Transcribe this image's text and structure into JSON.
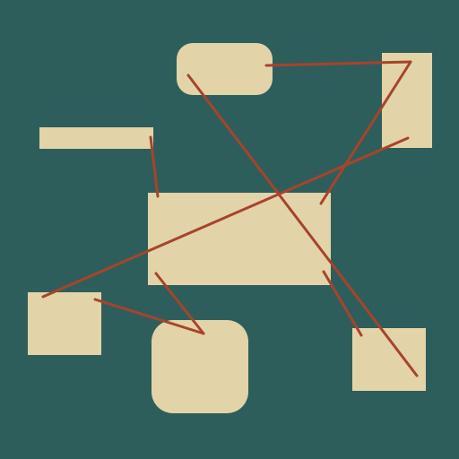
{
  "colors": {
    "background": "#2e5e5c",
    "node_fill": "#e2d4a8",
    "connector": "#a8432b"
  },
  "nodes": [
    {
      "id": "rounded-top",
      "shape": "rounded-rectangle"
    },
    {
      "id": "right-tall",
      "shape": "rectangle"
    },
    {
      "id": "thin-bar",
      "shape": "rectangle"
    },
    {
      "id": "center-large",
      "shape": "rectangle"
    },
    {
      "id": "small-left",
      "shape": "rectangle"
    },
    {
      "id": "rounded-bottom",
      "shape": "rounded-rectangle"
    },
    {
      "id": "bottom-right",
      "shape": "rectangle"
    }
  ],
  "edges": [
    {
      "from": "rounded-top",
      "to": "right-tall"
    },
    {
      "from": "right-tall",
      "to": "center-large"
    },
    {
      "from": "thin-bar",
      "to": "center-large"
    },
    {
      "from": "right-tall",
      "to": "small-left"
    },
    {
      "from": "rounded-top",
      "to": "bottom-right"
    },
    {
      "from": "center-large",
      "to": "rounded-bottom"
    },
    {
      "from": "small-left",
      "to": "rounded-bottom"
    },
    {
      "from": "center-large",
      "to": "bottom-right"
    }
  ]
}
